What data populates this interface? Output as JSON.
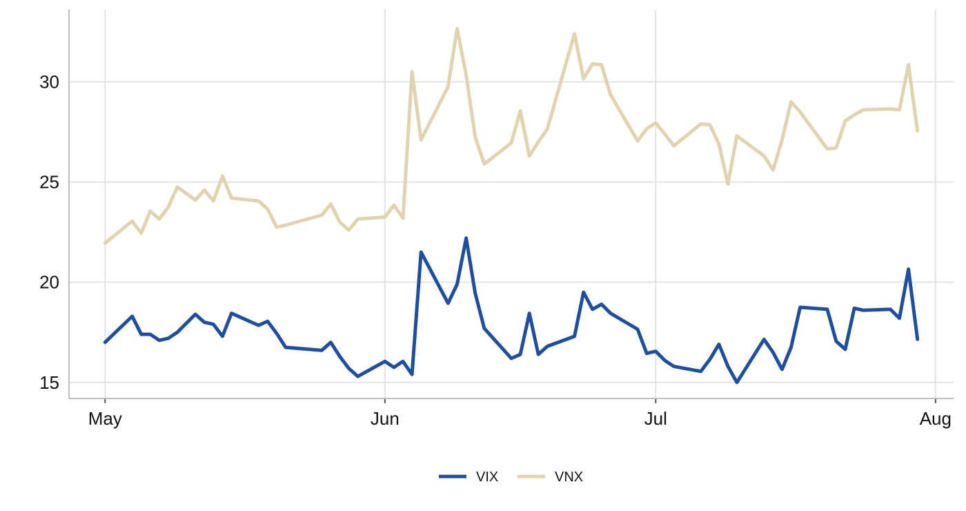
{
  "chart_data": {
    "type": "line",
    "title": "",
    "xlabel": "",
    "ylabel": "",
    "x_axis": "date",
    "x_ticks": [
      {
        "label": "May",
        "date": "2024-05-01"
      },
      {
        "label": "Jun",
        "date": "2024-06-01"
      },
      {
        "label": "Jul",
        "date": "2024-07-01"
      },
      {
        "label": "Aug",
        "date": "2024-08-01"
      }
    ],
    "xlim": [
      "2024-04-27",
      "2024-08-03"
    ],
    "y_ticks": [
      15,
      20,
      25,
      30
    ],
    "ylim": [
      14.2,
      33.6
    ],
    "grid": true,
    "legend_position": "bottom",
    "colors": {
      "VIX": "#1f4e9c",
      "VNX": "#e0d4b0"
    },
    "x": [
      "2024-05-01",
      "2024-05-04",
      "2024-05-05",
      "2024-05-06",
      "2024-05-07",
      "2024-05-08",
      "2024-05-09",
      "2024-05-11",
      "2024-05-12",
      "2024-05-13",
      "2024-05-14",
      "2024-05-15",
      "2024-05-18",
      "2024-05-19",
      "2024-05-20",
      "2024-05-21",
      "2024-05-25",
      "2024-05-26",
      "2024-05-27",
      "2024-05-28",
      "2024-05-29",
      "2024-06-01",
      "2024-06-02",
      "2024-06-03",
      "2024-06-04",
      "2024-06-05",
      "2024-06-08",
      "2024-06-09",
      "2024-06-10",
      "2024-06-11",
      "2024-06-12",
      "2024-06-15",
      "2024-06-16",
      "2024-06-17",
      "2024-06-18",
      "2024-06-19",
      "2024-06-22",
      "2024-06-23",
      "2024-06-24",
      "2024-06-25",
      "2024-06-26",
      "2024-06-29",
      "2024-06-30",
      "2024-07-01",
      "2024-07-02",
      "2024-07-03",
      "2024-07-06",
      "2024-07-07",
      "2024-07-08",
      "2024-07-09",
      "2024-07-10",
      "2024-07-13",
      "2024-07-14",
      "2024-07-15",
      "2024-07-16",
      "2024-07-17",
      "2024-07-20",
      "2024-07-21",
      "2024-07-22",
      "2024-07-23",
      "2024-07-24",
      "2024-07-27",
      "2024-07-28",
      "2024-07-29",
      "2024-07-30"
    ],
    "series": [
      {
        "name": "VIX",
        "values": [
          17.0,
          18.3,
          17.4,
          17.4,
          17.1,
          17.2,
          17.5,
          18.4,
          18.0,
          17.9,
          17.3,
          18.45,
          17.85,
          18.05,
          17.45,
          16.75,
          16.6,
          17.0,
          16.3,
          15.7,
          15.3,
          16.05,
          15.75,
          16.05,
          15.4,
          21.5,
          18.95,
          19.9,
          22.2,
          19.45,
          17.7,
          16.2,
          16.4,
          18.45,
          16.4,
          16.8,
          17.3,
          19.5,
          18.65,
          18.9,
          18.45,
          17.65,
          16.45,
          16.55,
          16.1,
          15.8,
          15.55,
          16.15,
          16.9,
          15.8,
          15.0,
          17.15,
          16.5,
          15.65,
          16.75,
          18.75,
          18.65,
          17.05,
          16.65,
          18.7,
          18.6,
          18.65,
          18.2,
          20.65,
          17.15
        ]
      },
      {
        "name": "VNX",
        "values": [
          21.95,
          23.05,
          22.45,
          23.55,
          23.15,
          23.75,
          24.75,
          24.1,
          24.6,
          24.05,
          25.3,
          24.2,
          24.05,
          23.65,
          22.75,
          22.85,
          23.35,
          23.9,
          23.0,
          22.6,
          23.15,
          23.25,
          23.85,
          23.2,
          30.5,
          27.1,
          29.75,
          32.65,
          30.35,
          27.25,
          25.9,
          26.95,
          28.55,
          26.3,
          27.0,
          27.65,
          32.4,
          30.15,
          30.9,
          30.85,
          29.35,
          27.05,
          27.65,
          27.95,
          27.4,
          26.8,
          27.9,
          27.85,
          26.9,
          24.9,
          27.3,
          26.3,
          25.6,
          27.1,
          29.0,
          28.5,
          26.65,
          26.7,
          28.05,
          28.35,
          28.6,
          28.65,
          28.6,
          30.85,
          27.55
        ]
      }
    ]
  }
}
